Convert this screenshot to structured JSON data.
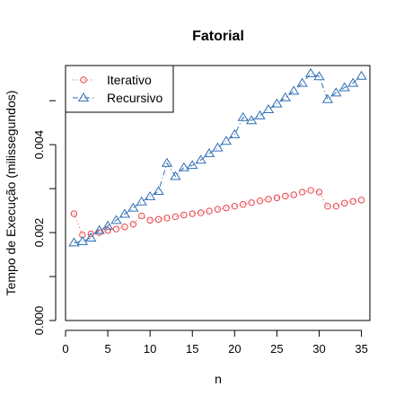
{
  "chart_data": {
    "type": "line",
    "title": "Fatorial",
    "xlabel": "n",
    "ylabel": "Tempo de Execução (milissegundos)",
    "xlim": [
      0,
      36
    ],
    "ylim": [
      0,
      0.0058
    ],
    "x_ticks": [
      0,
      5,
      10,
      15,
      20,
      25,
      30,
      35
    ],
    "y_ticks": [
      0.0,
      0.002,
      0.004
    ],
    "y_tick_labels": [
      "0.000",
      "0.002",
      "0.004"
    ],
    "grid": false,
    "legend_position": "top-left",
    "x": [
      1,
      2,
      3,
      4,
      5,
      6,
      7,
      8,
      9,
      10,
      11,
      12,
      13,
      14,
      15,
      16,
      17,
      18,
      19,
      20,
      21,
      22,
      23,
      24,
      25,
      26,
      27,
      28,
      29,
      30,
      31,
      32,
      33,
      34,
      35
    ],
    "series": [
      {
        "name": "Iterativo",
        "color": "#e8454a",
        "marker": "circle",
        "line_style": "dotted",
        "values": [
          0.00243,
          0.00195,
          0.00197,
          0.002,
          0.00205,
          0.00208,
          0.00213,
          0.00219,
          0.00238,
          0.00228,
          0.0023,
          0.00233,
          0.00236,
          0.0024,
          0.00243,
          0.00245,
          0.00249,
          0.00253,
          0.00256,
          0.0026,
          0.00264,
          0.00268,
          0.00272,
          0.00276,
          0.00279,
          0.00283,
          0.00286,
          0.00292,
          0.00296,
          0.00292,
          0.0026,
          0.0026,
          0.00267,
          0.00271,
          0.00274
        ]
      },
      {
        "name": "Recursivo",
        "color": "#2e6eb5",
        "marker": "triangle",
        "line_style": "dashdot",
        "values": [
          0.00177,
          0.0018,
          0.00188,
          0.00205,
          0.00215,
          0.00228,
          0.00242,
          0.00256,
          0.0027,
          0.00282,
          0.00294,
          0.00358,
          0.00328,
          0.00348,
          0.00353,
          0.00365,
          0.0038,
          0.00393,
          0.00408,
          0.00423,
          0.00462,
          0.00455,
          0.00466,
          0.0048,
          0.00493,
          0.00507,
          0.00522,
          0.0054,
          0.00562,
          0.00555,
          0.00503,
          0.00518,
          0.0053,
          0.0054,
          0.00556
        ]
      }
    ]
  }
}
